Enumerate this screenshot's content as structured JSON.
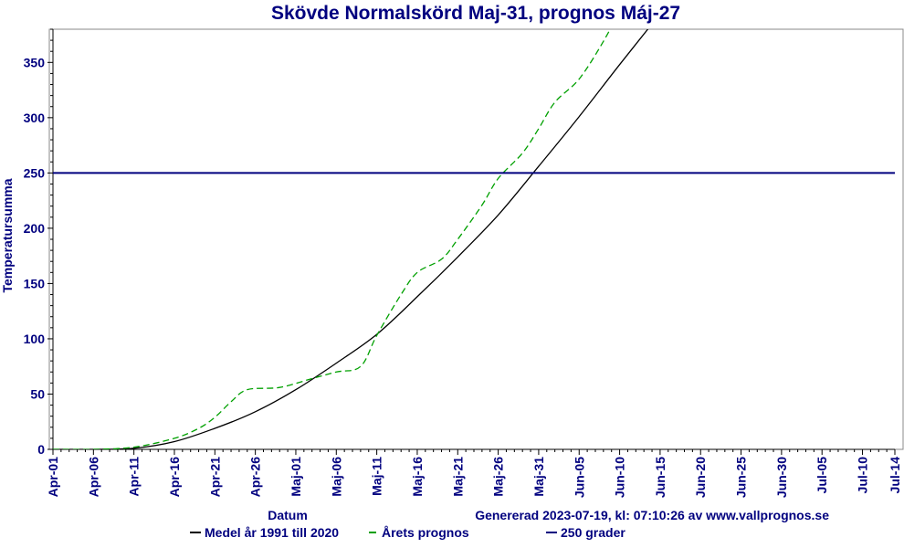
{
  "chart_data": {
    "type": "line",
    "title": "Skövde Normalskörd Maj-31, prognos Máj-27",
    "xlabel": "Datum",
    "ylabel": "Temperatursumma",
    "generated": "Genererad 2023-07-19, kl: 07:10:26 av www.vallprognos.se",
    "x_ticks": [
      "Apr-01",
      "Apr-06",
      "Apr-11",
      "Apr-16",
      "Apr-21",
      "Apr-26",
      "Maj-01",
      "Maj-06",
      "Maj-11",
      "Maj-16",
      "Maj-21",
      "Maj-26",
      "Maj-31",
      "Jun-05",
      "Jun-10",
      "Jun-15",
      "Jun-20",
      "Jun-25",
      "Jun-30",
      "Jul-05",
      "Jul-10",
      "Jul-14"
    ],
    "x_tick_days": [
      0,
      5,
      10,
      15,
      20,
      25,
      30,
      35,
      40,
      45,
      50,
      55,
      60,
      65,
      70,
      75,
      80,
      85,
      90,
      95,
      100,
      104
    ],
    "ylim": [
      0,
      380
    ],
    "y_ticks": [
      0,
      50,
      100,
      150,
      200,
      250,
      300,
      350
    ],
    "grid": false,
    "legend_position": "bottom",
    "series": [
      {
        "name": "Medel år 1991 till 2020",
        "color": "#000000",
        "style": "solid",
        "x": [
          "Apr-01",
          "Apr-06",
          "Apr-11",
          "Apr-16",
          "Apr-21",
          "Apr-26",
          "Maj-01",
          "Maj-06",
          "Maj-11",
          "Maj-16",
          "Maj-21",
          "Maj-26",
          "Maj-31",
          "Jun-05",
          "Jun-10",
          "Jun-15"
        ],
        "values": [
          0,
          0,
          1,
          7,
          19,
          34,
          54,
          78,
          104,
          138,
          174,
          212,
          256,
          301,
          348,
          394
        ]
      },
      {
        "name": "Årets prognos",
        "color": "#00a000",
        "style": "dashed",
        "x": [
          "Apr-01",
          "Apr-06",
          "Apr-11",
          "Apr-16",
          "Apr-19",
          "Apr-21",
          "Apr-23",
          "Apr-25",
          "Apr-29",
          "May-03",
          "Maj-06",
          "Maj-09",
          "Maj-11",
          "Maj-14",
          "Maj-16",
          "Maj-19",
          "Maj-21",
          "Maj-24",
          "Maj-26",
          "Maj-29",
          "Maj-31",
          "Jun-02",
          "Jun-05",
          "Jun-08",
          "Jun-10"
        ],
        "values": [
          0,
          0,
          2,
          10,
          19,
          29,
          43,
          54,
          56,
          64,
          70,
          75,
          103,
          140,
          160,
          172,
          190,
          221,
          245,
          268,
          290,
          314,
          335,
          369,
          397
        ]
      },
      {
        "name": "250 grader",
        "color": "#00007f",
        "style": "solid",
        "x": [
          "Apr-01",
          "Jul-14"
        ],
        "values": [
          250,
          250
        ]
      }
    ]
  }
}
